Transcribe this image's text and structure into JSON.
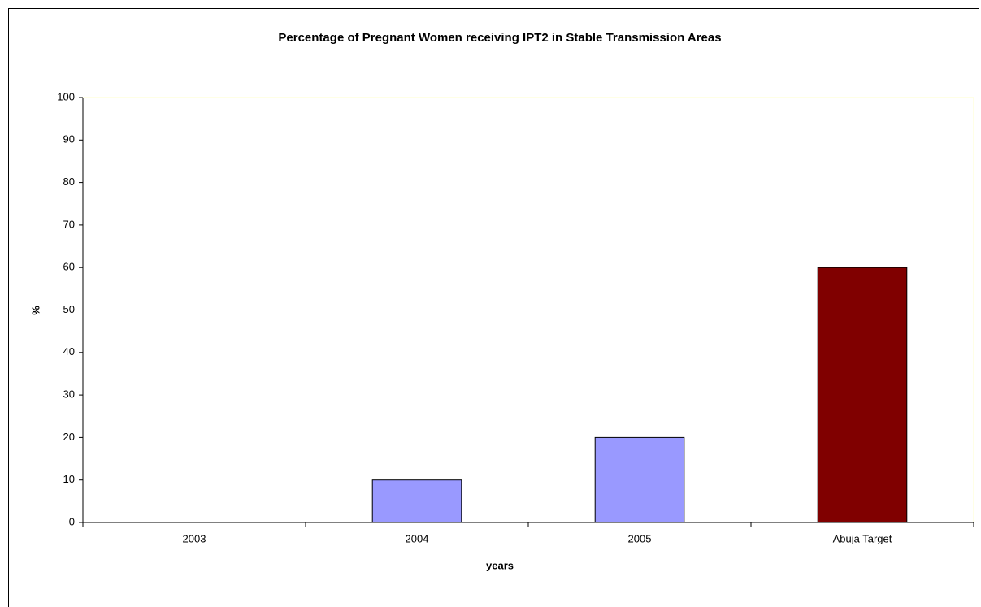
{
  "chart_data": {
    "type": "bar",
    "title": "Percentage of Pregnant Women receiving IPT2 in Stable Transmission Areas",
    "x_label": "years",
    "y_label": "%",
    "categories": [
      "2003",
      "2004",
      "2005",
      "Abuja Target"
    ],
    "values": [
      0,
      10,
      20,
      60
    ],
    "colors": [
      "#9999ff",
      "#9999ff",
      "#9999ff",
      "#800000"
    ],
    "ylim": [
      0,
      100
    ],
    "yticks": [
      0,
      10,
      20,
      30,
      40,
      50,
      60,
      70,
      80,
      90,
      100
    ],
    "grid": false
  }
}
